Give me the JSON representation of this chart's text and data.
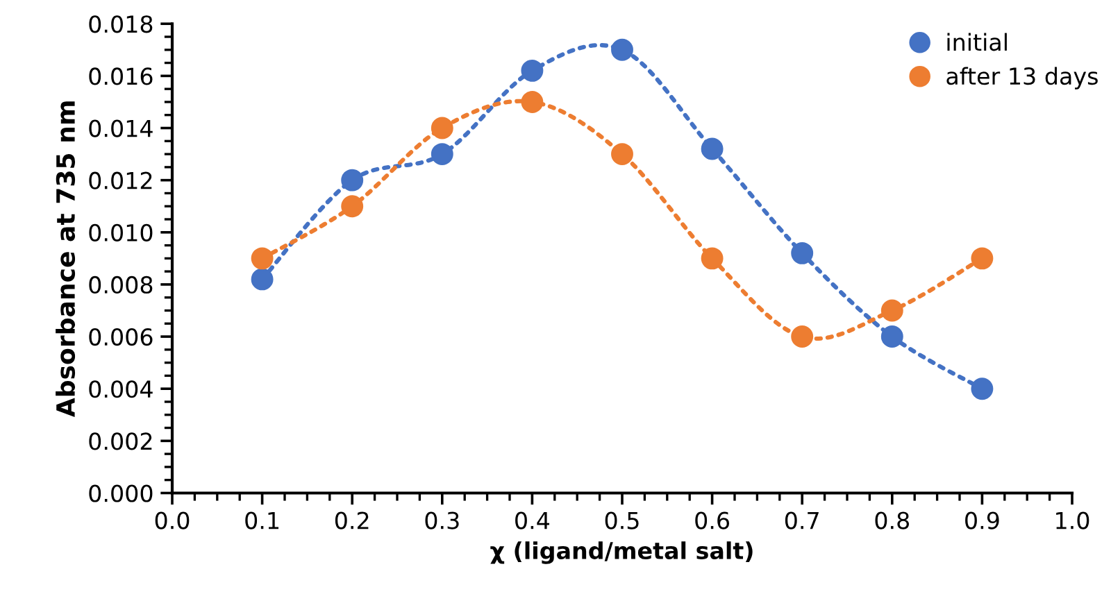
{
  "chart_data": {
    "type": "line",
    "xlabel": "χ (ligand/metal salt)",
    "ylabel": "Absorbance at 735 nm",
    "x": [
      0.1,
      0.2,
      0.3,
      0.4,
      0.5,
      0.6,
      0.7,
      0.8,
      0.9
    ],
    "series": [
      {
        "name": "initial",
        "color": "#4472c4",
        "values": [
          0.0082,
          0.012,
          0.013,
          0.0162,
          0.017,
          0.0132,
          0.0092,
          0.006,
          0.004
        ]
      },
      {
        "name": "after 13 days",
        "color": "#ed7d31",
        "values": [
          0.009,
          0.011,
          0.014,
          0.015,
          0.013,
          0.009,
          0.006,
          0.007,
          0.009
        ]
      }
    ],
    "xlim": [
      0.0,
      1.0
    ],
    "xticks": [
      {
        "value": 0.0,
        "label": "0.0"
      },
      {
        "value": 0.1,
        "label": "0.1"
      },
      {
        "value": 0.2,
        "label": "0.2"
      },
      {
        "value": 0.3,
        "label": "0.3"
      },
      {
        "value": 0.4,
        "label": "0.4"
      },
      {
        "value": 0.5,
        "label": "0.5"
      },
      {
        "value": 0.6,
        "label": "0.6"
      },
      {
        "value": 0.7,
        "label": "0.7"
      },
      {
        "value": 0.8,
        "label": "0.8"
      },
      {
        "value": 0.9,
        "label": "0.9"
      },
      {
        "value": 1.0,
        "label": "1.0"
      }
    ],
    "ylim": [
      0.0,
      0.018
    ],
    "yticks": [
      {
        "value": 0.0,
        "label": "0.000"
      },
      {
        "value": 0.002,
        "label": "0.002"
      },
      {
        "value": 0.004,
        "label": "0.004"
      },
      {
        "value": 0.006,
        "label": "0.006"
      },
      {
        "value": 0.008,
        "label": "0.008"
      },
      {
        "value": 0.01,
        "label": "0.010"
      },
      {
        "value": 0.012,
        "label": "0.012"
      },
      {
        "value": 0.014,
        "label": "0.014"
      },
      {
        "value": 0.016,
        "label": "0.016"
      },
      {
        "value": 0.018,
        "label": "0.018"
      }
    ],
    "grid": false,
    "legend": "top right",
    "marker": "circle",
    "line_style": "dotted"
  }
}
